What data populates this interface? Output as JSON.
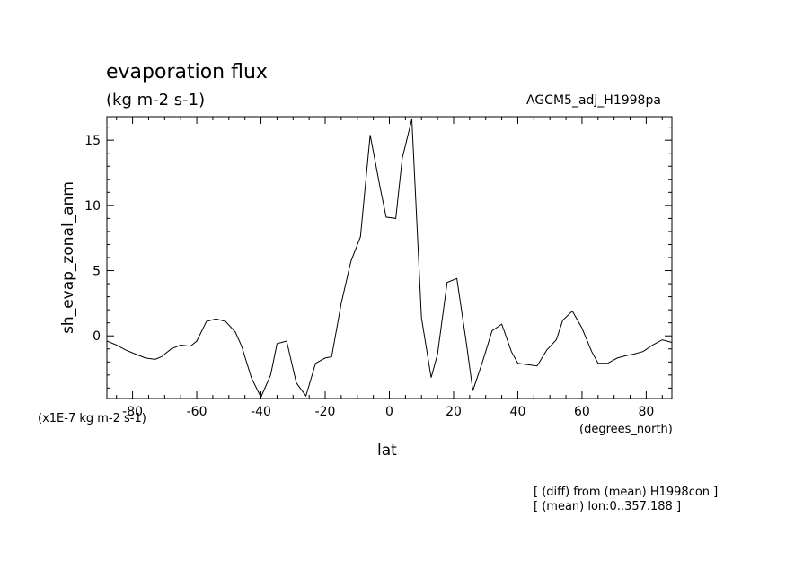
{
  "header": {
    "title": "evaporation flux",
    "units": "(kg m-2 s-1)",
    "model": "AGCM5_adj_H1998pa"
  },
  "footer": {
    "note1": "[ (diff) from (mean) H1998con ]",
    "note2": "[ (mean) lon:0..357.188 ]"
  },
  "chart_data": {
    "type": "line",
    "title": "evaporation flux",
    "subtitle": "(kg m-2 s-1)",
    "xlabel": "lat",
    "xunits": "(degrees_north)",
    "ylabel": "sh_evap_zonal_anm",
    "yunits": "(x1E-7 kg m-2 s-1)",
    "xlim": [
      -88,
      88
    ],
    "ylim": [
      -4.8,
      16.8
    ],
    "xticks": [
      -80,
      -60,
      -40,
      -20,
      0,
      20,
      40,
      60,
      80
    ],
    "yticks": [
      0,
      5,
      10,
      15
    ],
    "grid": false,
    "series": [
      {
        "x": [
          -88,
          -85,
          -82,
          -79,
          -76,
          -73,
          -71,
          -68,
          -65,
          -62,
          -60,
          -57,
          -54,
          -51,
          -48,
          -46,
          -43,
          -40,
          -37,
          -35,
          -32,
          -29,
          -26,
          -23,
          -20,
          -18,
          -15,
          -12,
          -9,
          -6,
          -3,
          -1,
          2,
          4,
          7,
          10,
          13,
          15,
          18,
          21,
          24,
          26,
          29,
          32,
          35,
          38,
          40,
          43,
          46,
          49,
          52,
          54,
          57,
          60,
          63,
          65,
          68,
          71,
          74,
          76,
          79,
          82,
          85,
          88
        ],
        "y": [
          -0.4,
          -0.7,
          -1.1,
          -1.4,
          -1.7,
          -1.8,
          -1.6,
          -1.0,
          -0.7,
          -0.8,
          -0.4,
          1.1,
          1.3,
          1.1,
          0.3,
          -0.8,
          -3.2,
          -4.7,
          -3.0,
          -0.6,
          -0.4,
          -3.6,
          -4.6,
          -2.1,
          -1.7,
          -1.6,
          2.5,
          5.7,
          7.6,
          15.4,
          11.5,
          9.1,
          9.0,
          13.6,
          16.6,
          1.4,
          -3.2,
          -1.4,
          4.1,
          4.4,
          -0.6,
          -4.2,
          -2.0,
          0.4,
          0.9,
          -1.2,
          -2.1,
          -2.2,
          -2.3,
          -1.1,
          -0.3,
          1.2,
          1.9,
          0.6,
          -1.2,
          -2.1,
          -2.1,
          -1.7,
          -1.5,
          -1.4,
          -1.2,
          -0.7,
          -0.3,
          -0.5
        ]
      }
    ]
  }
}
